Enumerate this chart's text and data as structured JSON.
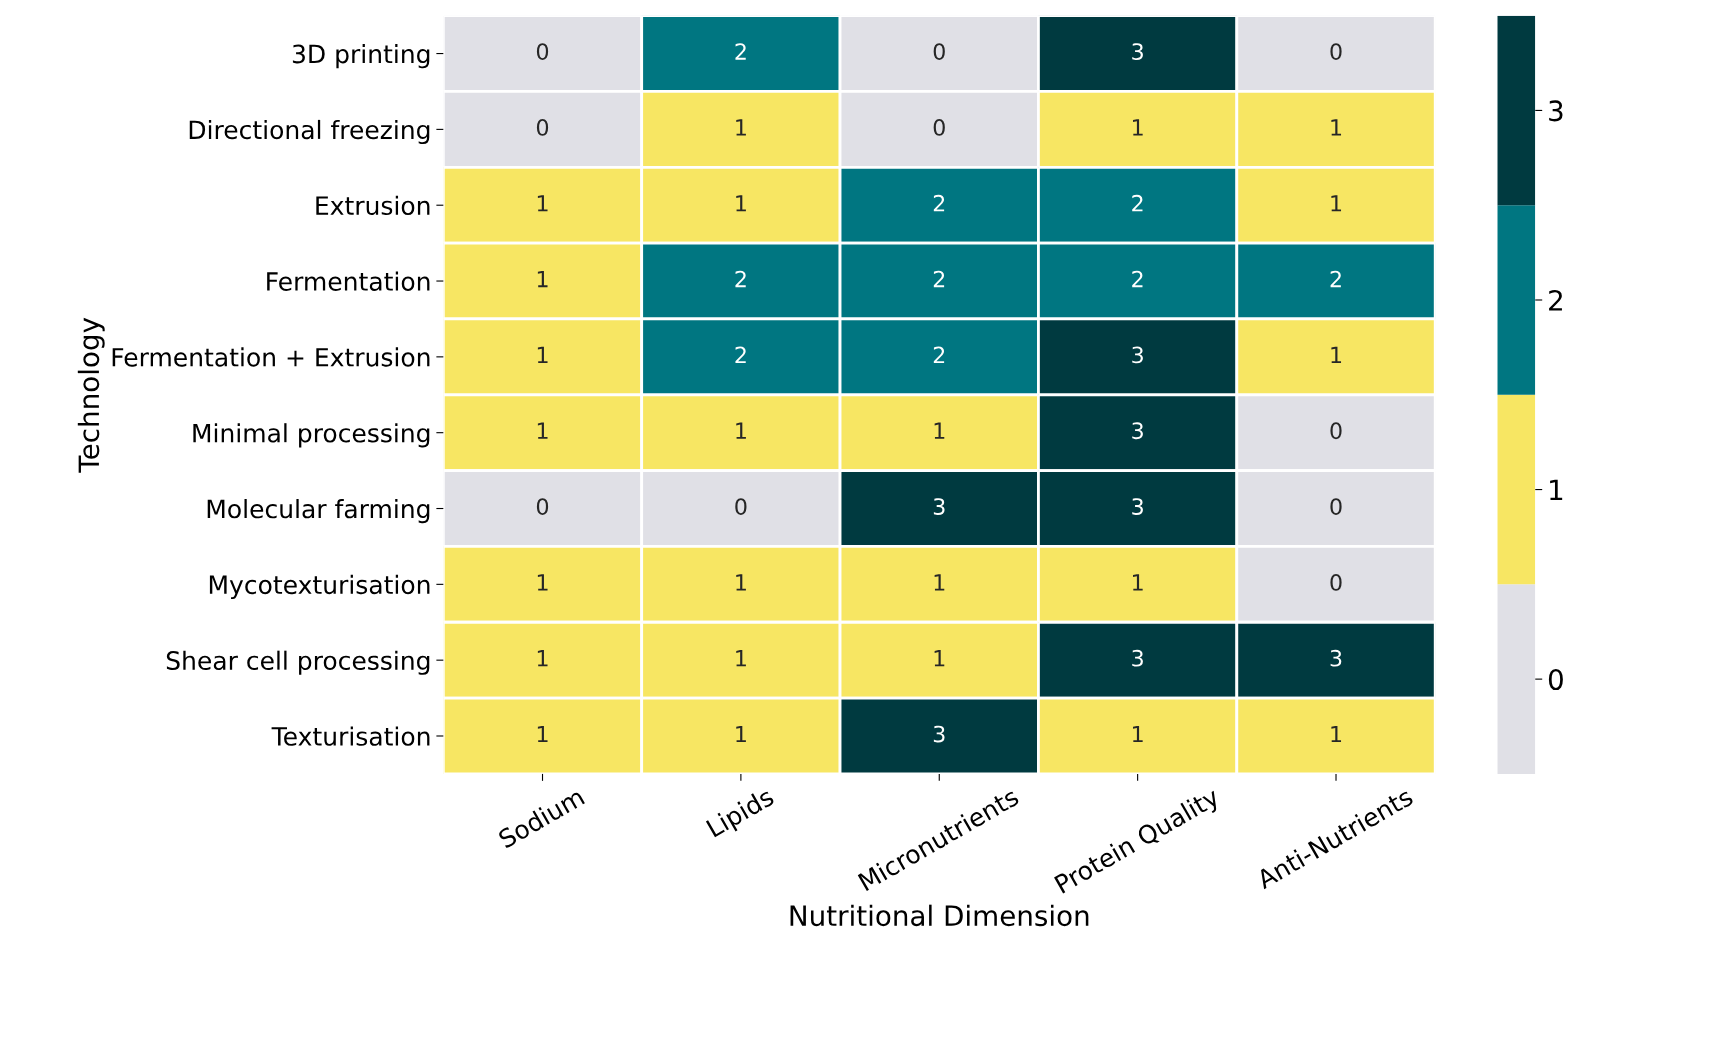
{
  "chart_data": {
    "type": "heatmap",
    "xlabel": "Nutritional Dimension",
    "ylabel": "Technology",
    "categories": [
      "Sodium",
      "Lipids",
      "Micronutrients",
      "Protein Quality",
      "Anti-Nutrients"
    ],
    "y_categories": [
      "3D printing",
      "Directional freezing",
      "Extrusion",
      "Fermentation",
      "Fermentation + Extrusion",
      "Minimal processing",
      "Molecular farming",
      "Mycotexturisation",
      "Shear cell processing",
      "Texturisation"
    ],
    "cells": [
      [
        0,
        2,
        0,
        3,
        0
      ],
      [
        0,
        1,
        0,
        1,
        1
      ],
      [
        1,
        1,
        2,
        2,
        1
      ],
      [
        1,
        2,
        2,
        2,
        2
      ],
      [
        1,
        2,
        2,
        3,
        1
      ],
      [
        1,
        1,
        1,
        3,
        0
      ],
      [
        0,
        0,
        3,
        3,
        0
      ],
      [
        1,
        1,
        1,
        1,
        0
      ],
      [
        1,
        1,
        1,
        3,
        3
      ],
      [
        1,
        1,
        3,
        1,
        1
      ]
    ],
    "colors": [
      "#e0e0e6",
      "#f7e663",
      "#007681",
      "#003a40"
    ],
    "clim": [
      -0.5,
      3.5
    ],
    "cticks": [
      0,
      1,
      2,
      3
    ],
    "data_labels": true
  }
}
